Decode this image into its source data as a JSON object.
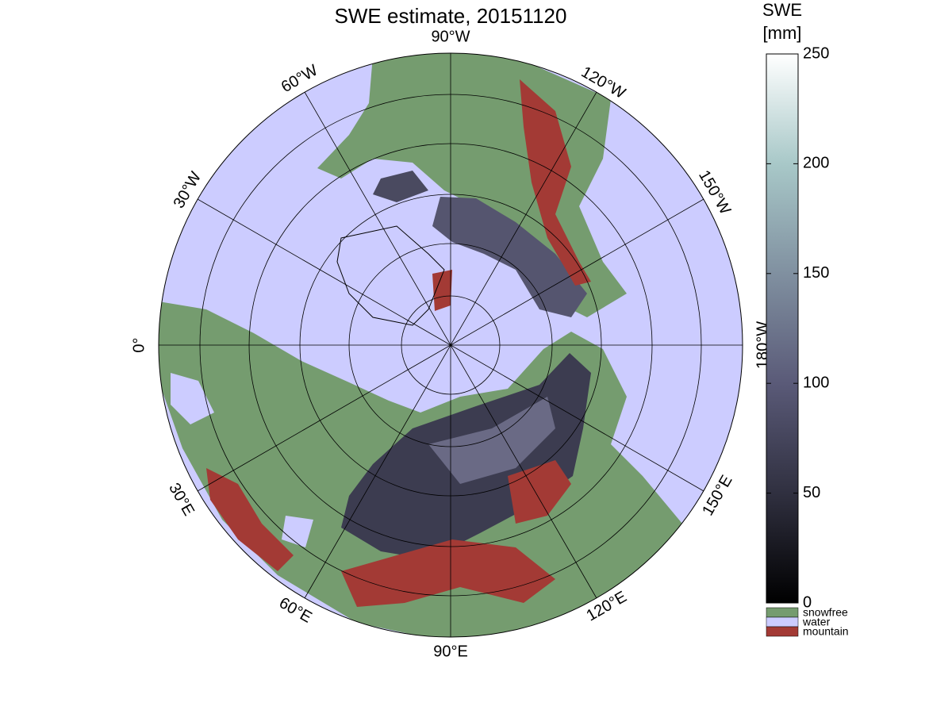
{
  "title": "SWE estimate, 20151120",
  "longitude_labels": [
    "90°W",
    "120°W",
    "150°W",
    "180°W",
    "150°E",
    "120°E",
    "90°E",
    "60°E",
    "30°E",
    "0°",
    "30°W",
    "60°W"
  ],
  "colorbar": {
    "title": [
      "SWE",
      "[mm]"
    ],
    "lim": [
      0,
      250
    ],
    "ticks": [
      0,
      50,
      100,
      150,
      200,
      250
    ],
    "colors": [
      "#000000",
      "#303040",
      "#5a5a78",
      "#8090a0",
      "#a8c8c8",
      "#ffffff"
    ]
  },
  "legend": [
    {
      "name": "snowfree",
      "color": "#759c6f"
    },
    {
      "name": "water",
      "color": "#ccccff"
    },
    {
      "name": "mountain",
      "color": "#a33a35"
    }
  ]
}
